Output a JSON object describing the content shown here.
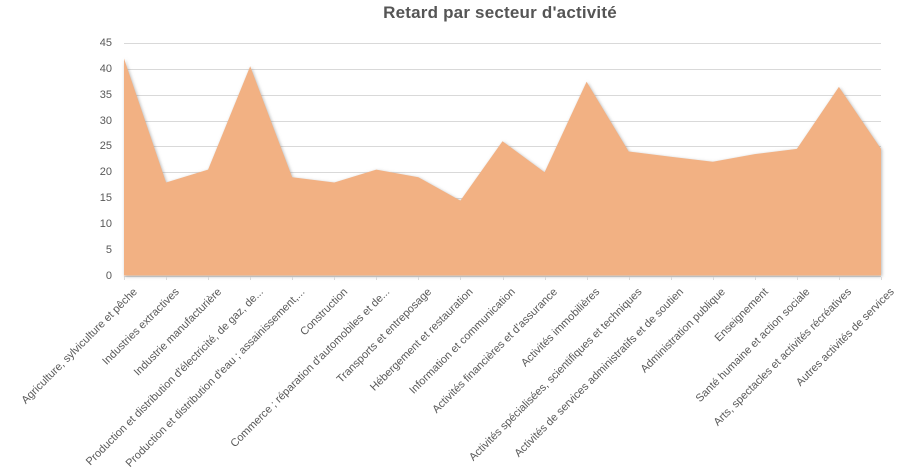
{
  "chart_data": {
    "type": "area",
    "title": "Retard par secteur d'activité",
    "categories": [
      "Agriculture, sylviculture et pêche",
      "Industries extractives",
      "Industrie manufacturière",
      "Production et distribution d'électricité, de gaz, de...",
      "Production et distribution d'eau ; assainissement,...",
      "Construction",
      "Commerce ; réparation d'automobiles et de...",
      "Transports et entreposage",
      "Hébergement et restauration",
      "Information et communication",
      "Activités financières et d'assurance",
      "Activités immobilières",
      "Activités spécialisées, scientifiques et techniques",
      "Activités de services administratifs et de soutien",
      "Administration publique",
      "Enseignement",
      "Santé humaine et action sociale",
      "Arts, spectacles et activités récréatives",
      "Autres activités de services"
    ],
    "values": [
      42,
      18,
      20.5,
      40.5,
      19,
      18,
      20.5,
      19,
      14.5,
      26,
      20,
      37.5,
      24,
      23,
      22,
      23.5,
      24.5,
      36.5,
      24.5
    ],
    "xlabel": "",
    "ylabel": "",
    "ylim": [
      0,
      45
    ],
    "ytick_step": 5,
    "grid": "horizontal",
    "legend": "none",
    "colors": {
      "area_fill": "#F2B183",
      "title_text": "#555555",
      "axis_text": "#595959",
      "gridline": "#D9D9D9"
    }
  }
}
